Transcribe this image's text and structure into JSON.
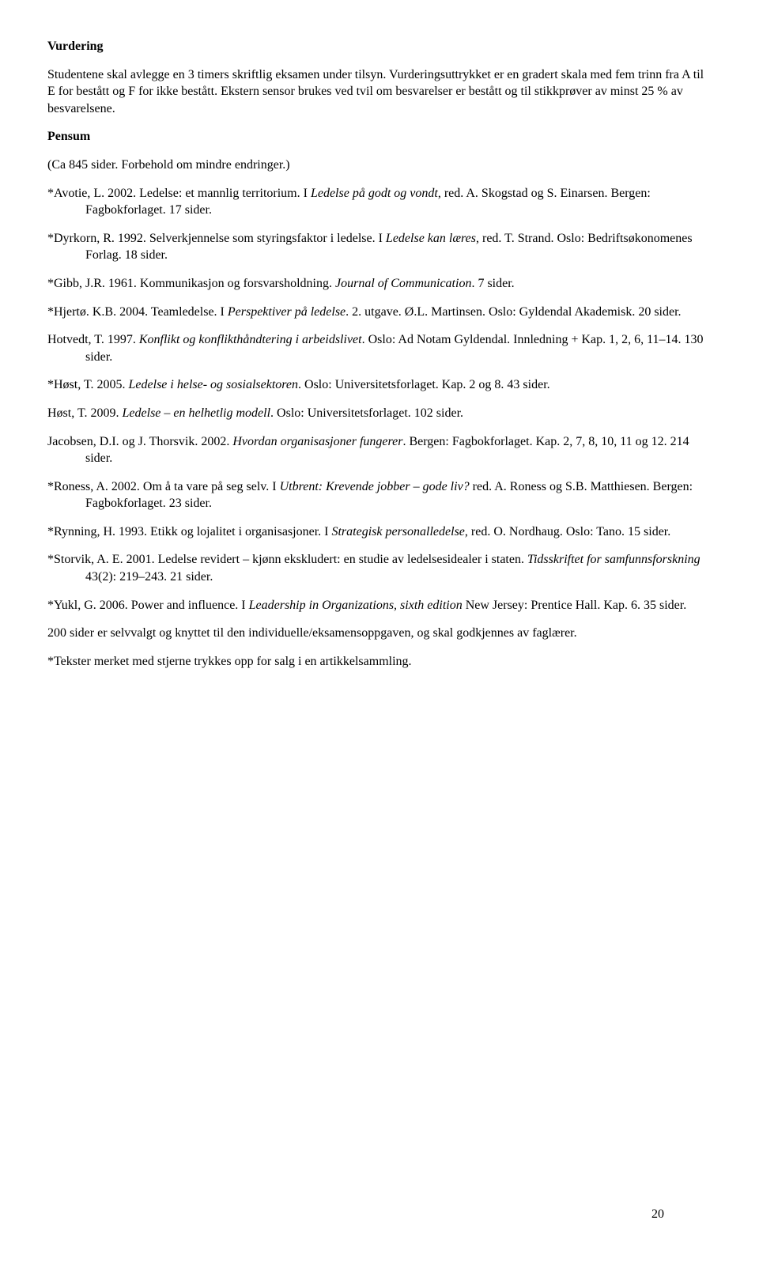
{
  "heading_vurdering": "Vurdering",
  "vurdering_body": "Studentene skal avlegge en 3 timers skriftlig eksamen under tilsyn. Vurderingsuttrykket er en gradert skala med fem trinn fra A til E for bestått og F for ikke bestått. Ekstern sensor brukes ved tvil om besvarelser er bestått og til stikkprøver av minst 25 % av besvarelsene.",
  "heading_pensum": "Pensum",
  "pensum_note": "(Ca 845 sider. Forbehold om mindre endringer.)",
  "entries": {
    "avotie": {
      "pre": "*Avotie, L. 2002. Ledelse: et mannlig territorium. I ",
      "italic": "Ledelse på godt og vondt",
      "post": ", red. A. Skogstad og S. Einarsen. Bergen: Fagbokforlaget. 17 sider."
    },
    "dyrkorn": {
      "pre": "*Dyrkorn, R. 1992. Selverkjennelse som styringsfaktor i ledelse. I ",
      "italic": "Ledelse kan læres",
      "post": ", red. T. Strand. Oslo: Bedriftsøkonomenes Forlag. 18 sider."
    },
    "gibb": {
      "pre": "*Gibb, J.R. 1961. Kommunikasjon og forsvarsholdning. ",
      "italic": "Journal of Communication",
      "post": ". 7 sider."
    },
    "hjerto": {
      "pre": "*Hjertø. K.B. 2004. Teamledelse. I ",
      "italic": "Perspektiver på ledelse",
      "post": ". 2. utgave. Ø.L. Martinsen. Oslo: Gyldendal Akademisk. 20 sider."
    },
    "hotvedt": {
      "pre": "Hotvedt, T. 1997. ",
      "italic": "Konflikt og konflikthåndtering i arbeidslivet",
      "post": ". Oslo: Ad Notam Gyldendal. Innledning + Kap. 1, 2, 6, 11–14. 130 sider."
    },
    "host2005": {
      "pre": "*Høst, T. 2005. ",
      "italic": "Ledelse i helse- og sosialsektoren",
      "post": ". Oslo: Universitetsforlaget. Kap. 2 og 8. 43 sider."
    },
    "host2009": {
      "pre": "Høst, T. 2009. ",
      "italic": "Ledelse – en helhetlig modell",
      "post": ". Oslo: Universitetsforlaget. 102 sider."
    },
    "jacobsen": {
      "pre": "Jacobsen, D.I. og J. Thorsvik. 2002. ",
      "italic": "Hvordan organisasjoner fungerer",
      "post": ". Bergen: Fagbokforlaget. Kap. 2, 7, 8, 10, 11 og 12. 214 sider."
    },
    "roness": {
      "pre": "*Roness, A. 2002. Om å ta vare på seg selv. I ",
      "italic": "Utbrent: Krevende jobber – gode liv?",
      "post": " red. A. Roness og S.B. Matthiesen. Bergen: Fagbokforlaget. 23 sider."
    },
    "rynning": {
      "pre": "*Rynning, H. 1993. Etikk og lojalitet i organisasjoner. I ",
      "italic": "Strategisk personalledelse",
      "post": ", red. O. Nordhaug. Oslo: Tano. 15 sider."
    },
    "storvik": {
      "pre": "*Storvik, A. E. 2001. Ledelse revidert – kjønn ekskludert: en studie av ledelsesidealer i staten. ",
      "italic": "Tidsskriftet for samfunnsforskning",
      "post": " 43(2): 219–243. 21 sider."
    },
    "yukl": {
      "pre": "*Yukl, G. 2006. Power and influence. I ",
      "italic": "Leadership in Organizations, sixth edition",
      "post": " New Jersey: Prentice Hall. Kap. 6. 35 sider."
    }
  },
  "closing1": "200 sider er selvvalgt og knyttet til den individuelle/eksamensoppgaven, og skal godkjennes av faglærer.",
  "closing2": "*Tekster merket med stjerne trykkes opp for salg i en artikkelsammling.",
  "page_number": "20"
}
